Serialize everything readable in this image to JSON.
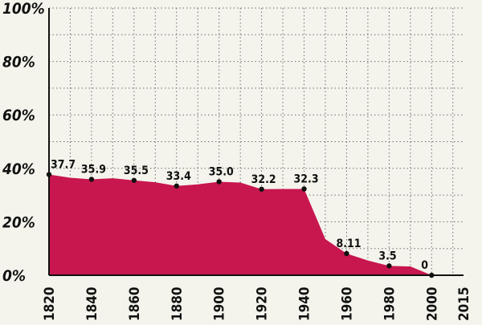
{
  "chart_data": {
    "type": "area",
    "y_ticks": [
      "100%",
      "80%",
      "60%",
      "40%",
      "20%",
      "0%"
    ],
    "x_ticks": [
      "1820",
      "1840",
      "1860",
      "1880",
      "1900",
      "1920",
      "1940",
      "1960",
      "1980",
      "2000",
      "2015"
    ],
    "xlim": [
      1820,
      2015
    ],
    "ylim": [
      0,
      100
    ],
    "grid": true,
    "series": [
      {
        "x": [
          1820,
          1830,
          1840,
          1850,
          1860,
          1870,
          1880,
          1890,
          1900,
          1910,
          1920,
          1930,
          1940,
          1950,
          1960,
          1970,
          1980,
          1990,
          2000
        ],
        "y": [
          37.7,
          36.5,
          35.9,
          36.3,
          35.5,
          34.8,
          33.4,
          34.0,
          35.0,
          34.7,
          32.2,
          32.3,
          32.3,
          13.5,
          8.11,
          5.5,
          3.5,
          3.3,
          0
        ]
      }
    ],
    "labeled_points": [
      {
        "x": 1820,
        "y": 37.7,
        "label": "37.7"
      },
      {
        "x": 1840,
        "y": 35.9,
        "label": "35.9"
      },
      {
        "x": 1860,
        "y": 35.5,
        "label": "35.5"
      },
      {
        "x": 1880,
        "y": 33.4,
        "label": "33.4"
      },
      {
        "x": 1900,
        "y": 35.0,
        "label": "35.0"
      },
      {
        "x": 1920,
        "y": 32.2,
        "label": "32.2"
      },
      {
        "x": 1940,
        "y": 32.3,
        "label": "32.3"
      },
      {
        "x": 1960,
        "y": 8.11,
        "label": "8.11"
      },
      {
        "x": 1980,
        "y": 3.5,
        "label": "3.5"
      },
      {
        "x": 2000,
        "y": 0,
        "label": "0"
      }
    ],
    "colors": {
      "area": "#c8164f",
      "background": "#f4f4ec",
      "grid": "#6f6f6f",
      "axis": "#111111"
    }
  }
}
